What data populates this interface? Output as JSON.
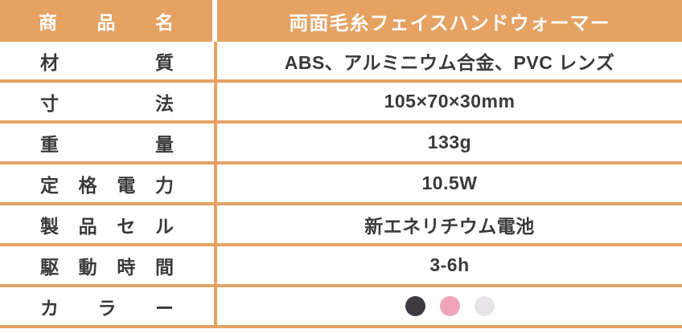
{
  "colors": {
    "accent": "#E5A263",
    "header_text": "#FFFFFF",
    "body_text": "#3A3A3A"
  },
  "table": {
    "header": {
      "label": "商品名",
      "value": "両面毛糸フェイスハンドウォーマー"
    },
    "rows": [
      {
        "label": "材質",
        "value": "ABS、アルミニウム合金、PVC レンズ"
      },
      {
        "label": "寸法",
        "value": "105×70×30mm"
      },
      {
        "label": "重量",
        "value": "133g"
      },
      {
        "label": "定格電力",
        "value": "10.5W"
      },
      {
        "label": "製品セル",
        "value": "新エネリチウム電池"
      },
      {
        "label": "駆動時間",
        "value": "3-6h"
      },
      {
        "label": "カラー",
        "value": ""
      }
    ],
    "swatches": [
      {
        "name": "dark-gray",
        "color": "#3E3A41"
      },
      {
        "name": "pink",
        "color": "#F1A5BB"
      },
      {
        "name": "light-gray",
        "color": "#E7E5E7"
      }
    ]
  }
}
